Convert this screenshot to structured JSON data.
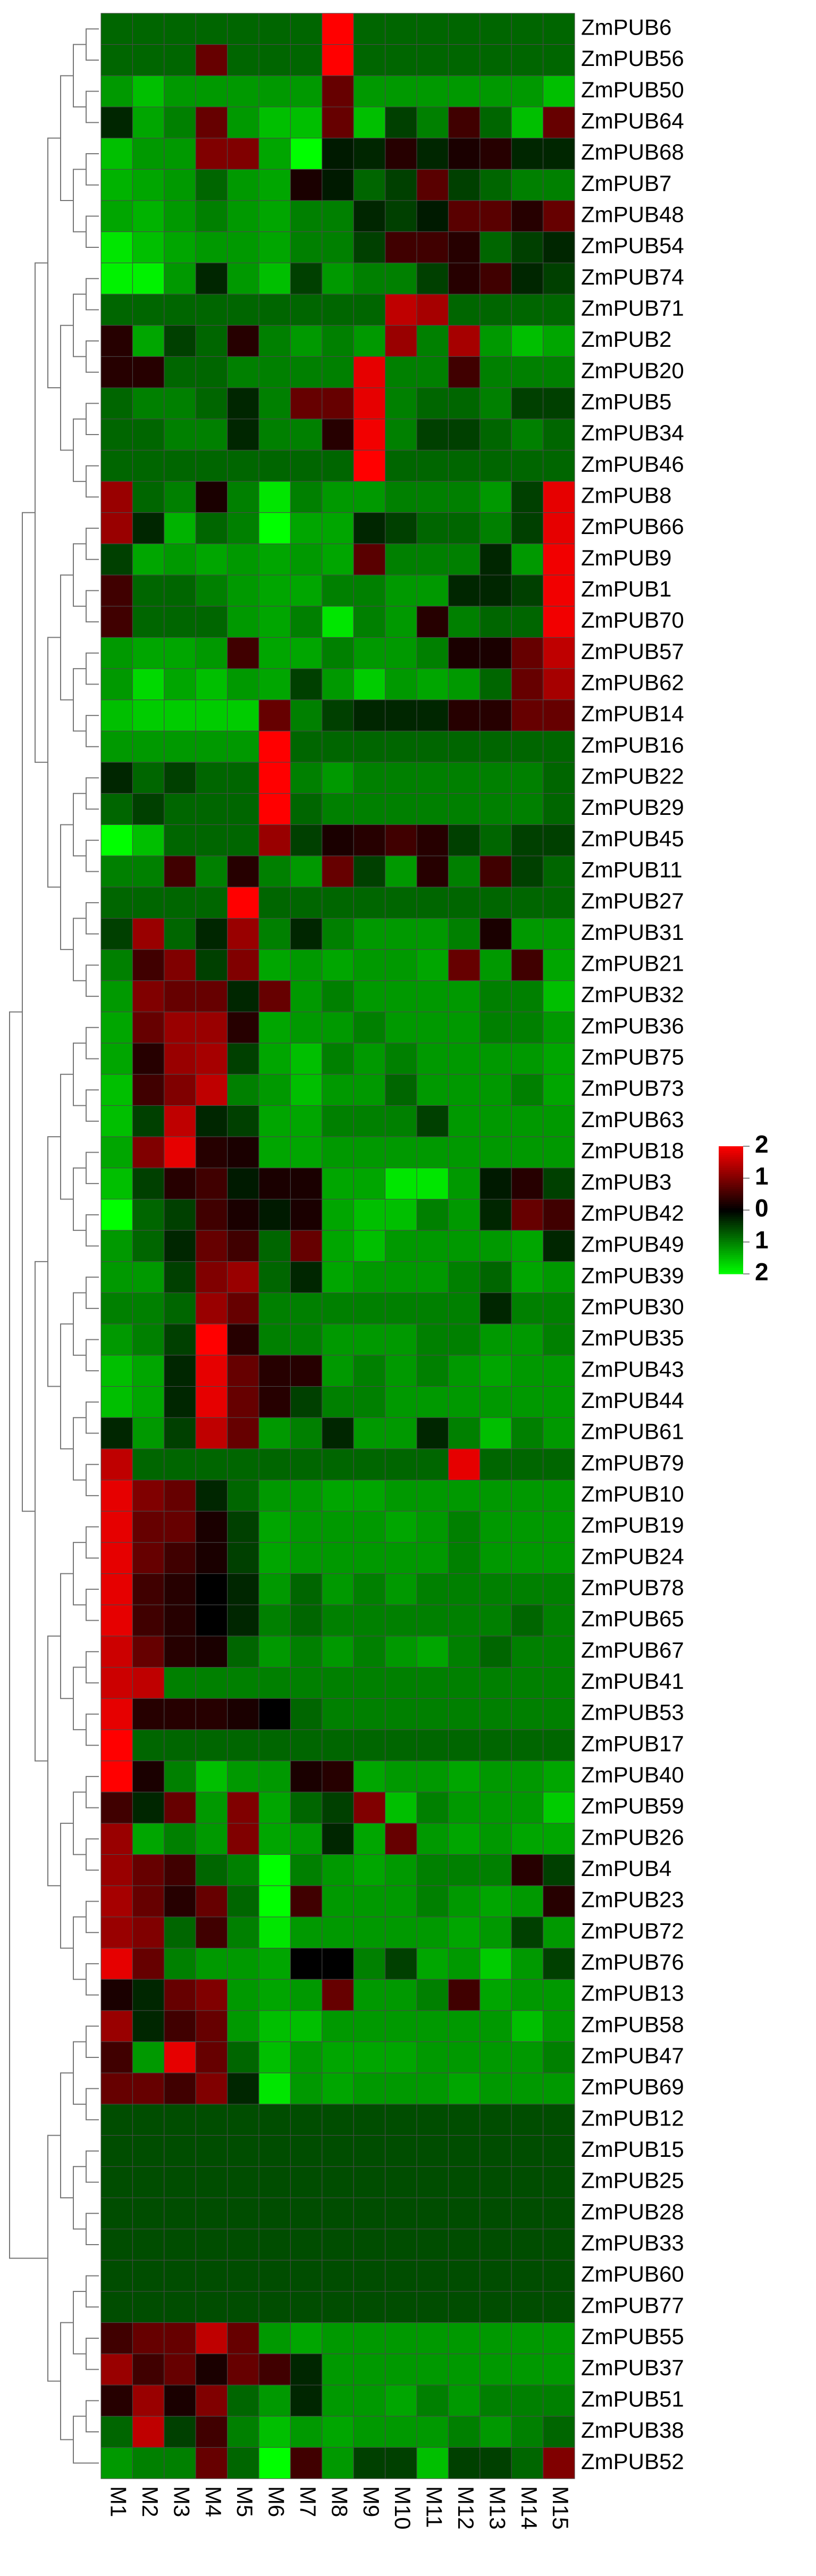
{
  "chart_data": {
    "type": "heatmap",
    "rows": [
      "ZmPUB6",
      "ZmPUB56",
      "ZmPUB50",
      "ZmPUB64",
      "ZmPUB68",
      "ZmPUB7",
      "ZmPUB48",
      "ZmPUB54",
      "ZmPUB74",
      "ZmPUB71",
      "ZmPUB2",
      "ZmPUB20",
      "ZmPUB5",
      "ZmPUB34",
      "ZmPUB46",
      "ZmPUB8",
      "ZmPUB66",
      "ZmPUB9",
      "ZmPUB1",
      "ZmPUB70",
      "ZmPUB57",
      "ZmPUB62",
      "ZmPUB14",
      "ZmPUB16",
      "ZmPUB22",
      "ZmPUB29",
      "ZmPUB45",
      "ZmPUB11",
      "ZmPUB27",
      "ZmPUB31",
      "ZmPUB21",
      "ZmPUB32",
      "ZmPUB36",
      "ZmPUB75",
      "ZmPUB73",
      "ZmPUB63",
      "ZmPUB18",
      "ZmPUB3",
      "ZmPUB42",
      "ZmPUB49",
      "ZmPUB39",
      "ZmPUB30",
      "ZmPUB35",
      "ZmPUB43",
      "ZmPUB44",
      "ZmPUB61",
      "ZmPUB79",
      "ZmPUB10",
      "ZmPUB19",
      "ZmPUB24",
      "ZmPUB78",
      "ZmPUB65",
      "ZmPUB67",
      "ZmPUB41",
      "ZmPUB53",
      "ZmPUB17",
      "ZmPUB40",
      "ZmPUB59",
      "ZmPUB26",
      "ZmPUB4",
      "ZmPUB23",
      "ZmPUB72",
      "ZmPUB76",
      "ZmPUB13",
      "ZmPUB58",
      "ZmPUB47",
      "ZmPUB69",
      "ZmPUB12",
      "ZmPUB15",
      "ZmPUB25",
      "ZmPUB28",
      "ZmPUB33",
      "ZmPUB60",
      "ZmPUB77",
      "ZmPUB55",
      "ZmPUB37",
      "ZmPUB51",
      "ZmPUB38",
      "ZmPUB52"
    ],
    "columns": [
      "M1",
      "M2",
      "M3",
      "M4",
      "M5",
      "M6",
      "M7",
      "M8",
      "M9",
      "M10",
      "M11",
      "M12",
      "M13",
      "M14",
      "M15"
    ],
    "values": [
      [
        -0.8,
        -0.8,
        -0.8,
        -0.8,
        -0.8,
        -0.8,
        -0.8,
        2,
        -0.8,
        -0.8,
        -0.8,
        -0.8,
        -0.8,
        -0.8,
        -0.8
      ],
      [
        -0.8,
        -0.8,
        -0.8,
        0.8,
        -0.8,
        -0.8,
        -0.8,
        2,
        -0.8,
        -0.8,
        -0.8,
        -0.8,
        -0.8,
        -0.8,
        -0.8
      ],
      [
        -1.2,
        -1.5,
        -1.2,
        -1.2,
        -1.2,
        -1.2,
        -1.2,
        0.8,
        -1.2,
        -1.2,
        -1.2,
        -1.2,
        -1.2,
        -1.2,
        -1.5
      ],
      [
        -0.3,
        -1.3,
        -1,
        0.8,
        -1.2,
        -1.5,
        -1.5,
        0.8,
        -1.5,
        -0.5,
        -1,
        0.5,
        -0.8,
        -1.5,
        0.8
      ],
      [
        -1.5,
        -1.2,
        -1.2,
        1,
        1,
        -1.3,
        -2,
        -0.2,
        -0.3,
        0.3,
        -0.3,
        0.2,
        0.3,
        -0.3,
        -0.3
      ],
      [
        -1.4,
        -1.3,
        -1.2,
        -0.8,
        -1.2,
        -1.3,
        0.2,
        -0.2,
        -0.8,
        -0.5,
        0.7,
        -0.5,
        -0.8,
        -1,
        -1
      ],
      [
        -1.3,
        -1.4,
        -1.2,
        -1,
        -1.2,
        -1.3,
        -1,
        -1,
        -0.3,
        -0.5,
        -0.2,
        0.7,
        0.7,
        0.3,
        0.8
      ],
      [
        -1.8,
        -1.5,
        -1.3,
        -1.2,
        -1.2,
        -1.3,
        -1,
        -1,
        -0.5,
        0.5,
        0.5,
        0.3,
        -0.8,
        -0.5,
        -0.3
      ],
      [
        -1.9,
        -1.9,
        -1.2,
        -0.3,
        -1.2,
        -1.5,
        -0.5,
        -1.2,
        -1,
        -1,
        -0.5,
        0.3,
        0.5,
        -0.3,
        -0.5
      ],
      [
        -0.8,
        -0.8,
        -0.8,
        -0.8,
        -0.8,
        -0.8,
        -0.8,
        -0.8,
        -0.8,
        1.5,
        1.3,
        -0.8,
        -0.8,
        -0.8,
        -0.8
      ],
      [
        0.3,
        -1.3,
        -0.5,
        -0.8,
        0.3,
        -1,
        -1.2,
        -1,
        -1.2,
        1.2,
        -1,
        1.3,
        -1.2,
        -1.5,
        -1.3
      ],
      [
        0.3,
        0.3,
        -0.8,
        -0.8,
        -1,
        -1,
        -1,
        -1,
        1.8,
        -1,
        -1,
        0.5,
        -1,
        -1,
        -1
      ],
      [
        -0.8,
        -1,
        -1,
        -0.8,
        -0.3,
        -1,
        0.8,
        0.8,
        1.8,
        -1,
        -0.8,
        -0.8,
        -1,
        -0.5,
        -0.5
      ],
      [
        -0.8,
        -0.8,
        -1,
        -1,
        -0.3,
        -1,
        -1,
        0.3,
        1.9,
        -1,
        -0.5,
        -0.5,
        -0.8,
        -1,
        -0.8
      ],
      [
        -0.8,
        -0.8,
        -0.8,
        -0.8,
        -0.8,
        -0.8,
        -0.8,
        -0.8,
        2,
        -0.8,
        -0.8,
        -0.8,
        -0.8,
        -0.8,
        -0.8
      ],
      [
        1.2,
        -0.8,
        -1,
        0.2,
        -1,
        -1.8,
        -1,
        -1.2,
        -1.2,
        -1,
        -1,
        -1,
        -1.2,
        -0.5,
        1.8
      ],
      [
        1.2,
        -0.3,
        -1.4,
        -0.8,
        -1,
        -2,
        -1.3,
        -1.3,
        -0.3,
        -0.5,
        -0.8,
        -0.8,
        -1,
        -0.5,
        1.8
      ],
      [
        -0.5,
        -1.3,
        -1.2,
        -1.3,
        -1.2,
        -1.3,
        -1.2,
        -1.3,
        0.7,
        -1,
        -1,
        -1,
        -0.3,
        -1.2,
        1.9
      ],
      [
        0.5,
        -0.8,
        -0.8,
        -1,
        -1.2,
        -1.3,
        -1.3,
        -1,
        -1,
        -1.2,
        -1.2,
        -0.3,
        -0.3,
        -0.5,
        1.9
      ],
      [
        0.5,
        -0.8,
        -0.8,
        -0.8,
        -1.2,
        -1.3,
        -1,
        -1.8,
        -1,
        -1.2,
        0.3,
        -1,
        -0.8,
        -0.8,
        1.9
      ],
      [
        -1.2,
        -1.3,
        -1.3,
        -1.2,
        0.5,
        -1.3,
        -1.3,
        -1,
        -1.2,
        -1.2,
        -1,
        0.2,
        0.2,
        0.8,
        1.5
      ],
      [
        -1.2,
        -1.7,
        -1.3,
        -1.5,
        -1.2,
        -1.3,
        -0.5,
        -1.2,
        -1.6,
        -1.2,
        -1.3,
        -1.2,
        -0.8,
        0.8,
        1.3
      ],
      [
        -1.5,
        -1.6,
        -1.6,
        -1.6,
        -1.6,
        0.8,
        -1,
        -0.5,
        -0.3,
        -0.3,
        -0.3,
        0.3,
        0.3,
        0.8,
        0.8
      ],
      [
        -1.2,
        -1.2,
        -1.2,
        -1.2,
        -1.2,
        2,
        -0.8,
        -0.8,
        -0.8,
        -0.8,
        -0.8,
        -0.8,
        -0.8,
        -0.8,
        -0.8
      ],
      [
        -0.3,
        -0.8,
        -0.5,
        -0.8,
        -0.8,
        2,
        -1,
        -1.2,
        -1,
        -1,
        -1,
        -1,
        -1,
        -1,
        -0.8
      ],
      [
        -0.8,
        -0.5,
        -0.8,
        -0.8,
        -0.8,
        2,
        -0.8,
        -1,
        -1,
        -1,
        -1,
        -1,
        -1,
        -1,
        -0.8
      ],
      [
        -2,
        -1.5,
        -0.8,
        -0.8,
        -0.8,
        1.2,
        -0.5,
        0.2,
        0.3,
        0.5,
        0.3,
        -0.5,
        -0.8,
        -0.5,
        -0.5
      ],
      [
        -1,
        -1,
        0.5,
        -1,
        0.3,
        -1,
        -1.2,
        0.8,
        -0.5,
        -1.2,
        0.3,
        -1,
        0.5,
        -0.5,
        -0.8
      ],
      [
        -0.8,
        -0.8,
        -0.8,
        -0.8,
        2,
        -0.8,
        -0.8,
        -0.8,
        -0.8,
        -0.8,
        -0.8,
        -0.8,
        -0.8,
        -0.8,
        -0.8
      ],
      [
        -0.5,
        1.2,
        -0.8,
        -0.3,
        1.2,
        -1,
        -0.3,
        -1,
        -1.2,
        -1.2,
        -1.2,
        -1,
        0.2,
        -1.2,
        -1.2
      ],
      [
        -1,
        0.5,
        1,
        -0.5,
        1,
        -1.3,
        -1.2,
        -1.3,
        -1.2,
        -1.2,
        -1.3,
        0.8,
        -1.2,
        0.5,
        -1.3
      ],
      [
        -1.2,
        1,
        0.8,
        0.8,
        -0.3,
        0.8,
        -1.2,
        -1,
        -1.2,
        -1.2,
        -1.2,
        -1.2,
        -1,
        -1,
        -1.5
      ],
      [
        -1.3,
        0.8,
        1.2,
        1.2,
        0.3,
        -1.3,
        -1.2,
        -1.2,
        -1,
        -1.2,
        -1.2,
        -1.2,
        -1,
        -1,
        -1.2
      ],
      [
        -1.3,
        0.3,
        1.2,
        1.3,
        -0.5,
        -1.3,
        -1.5,
        -1,
        -1.2,
        -1,
        -1.2,
        -1.2,
        -1.2,
        -1.2,
        -1.3
      ],
      [
        -1.5,
        0.5,
        1,
        1.5,
        -1,
        -1.2,
        -1.5,
        -1.2,
        -1.2,
        -0.8,
        -1.2,
        -1.2,
        -1.2,
        -1,
        -1.3
      ],
      [
        -1.5,
        -0.5,
        1.5,
        -0.3,
        -0.5,
        -1.3,
        -1.3,
        -1,
        -1,
        -1,
        -0.5,
        -1.2,
        -1.2,
        -1.2,
        -1.2
      ],
      [
        -1.3,
        1,
        1.8,
        0.3,
        0.2,
        -1.3,
        -1.3,
        -1.2,
        -1.2,
        -1.2,
        -1.2,
        -1.2,
        -1.2,
        -1.2,
        -1.2
      ],
      [
        -1.5,
        -0.5,
        0.3,
        0.5,
        -0.2,
        0.2,
        0.2,
        -1.3,
        -1.3,
        -1.8,
        -1.8,
        -1.2,
        -0.2,
        0.3,
        -0.5
      ],
      [
        -2,
        -0.8,
        -0.5,
        0.5,
        0.2,
        -0.2,
        0.2,
        -1.3,
        -1.5,
        -1.5,
        -1,
        -1.2,
        -0.3,
        0.8,
        0.5
      ],
      [
        -1.2,
        -0.8,
        -0.3,
        0.8,
        0.5,
        -0.8,
        0.8,
        -1.3,
        -1.5,
        -1.2,
        -1.2,
        -1.2,
        -1.2,
        -1.3,
        -0.3
      ],
      [
        -1.2,
        -1.2,
        -0.5,
        1,
        1.2,
        -0.8,
        -0.3,
        -1.3,
        -1.2,
        -1.2,
        -1.2,
        -1,
        -0.8,
        -1.3,
        -1.2
      ],
      [
        -1,
        -1,
        -0.8,
        1.2,
        0.8,
        -1,
        -1,
        -1,
        -1,
        -1,
        -1,
        -1,
        -0.3,
        -1,
        -1
      ],
      [
        -1.2,
        -1,
        -0.5,
        2,
        0.3,
        -1,
        -1,
        -1.2,
        -1.2,
        -1.2,
        -1,
        -1,
        -1.2,
        -1.2,
        -1
      ],
      [
        -1.5,
        -1.3,
        -0.3,
        1.8,
        0.8,
        0.3,
        0.3,
        -1.2,
        -1,
        -1.2,
        -1,
        -1.2,
        -1.3,
        -1.2,
        -1.2
      ],
      [
        -1.5,
        -1.3,
        -0.3,
        1.8,
        0.8,
        0.3,
        -0.5,
        -1,
        -1,
        -1.2,
        -1.2,
        -1.2,
        -1.2,
        -1.2,
        -1.2
      ],
      [
        -0.3,
        -1.2,
        -0.5,
        1.5,
        0.8,
        -1.2,
        -1,
        -0.3,
        -1.2,
        -1.2,
        -0.3,
        -1,
        -1.5,
        -1,
        -1.2
      ],
      [
        1.5,
        -0.8,
        -0.8,
        -0.8,
        -0.8,
        -0.8,
        -0.8,
        -0.8,
        -0.8,
        -0.8,
        -0.8,
        1.8,
        -0.8,
        -0.8,
        -0.8
      ],
      [
        1.8,
        1,
        0.8,
        -0.3,
        -0.8,
        -1.2,
        -1.2,
        -1.3,
        -1.3,
        -1.2,
        -1.2,
        -1.2,
        -1.2,
        -1.2,
        -1.2
      ],
      [
        1.8,
        0.8,
        0.8,
        0.2,
        -0.5,
        -1.3,
        -1.2,
        -1.2,
        -1.2,
        -1.3,
        -1.2,
        -1,
        -1.2,
        -1.2,
        -1.2
      ],
      [
        1.8,
        0.8,
        0.5,
        0.2,
        -0.5,
        -1.3,
        -1.2,
        -1.2,
        -1.2,
        -1.2,
        -1.2,
        -1,
        -1.2,
        -1.2,
        -1.2
      ],
      [
        1.8,
        0.5,
        0.3,
        0,
        -0.3,
        -1.2,
        -0.8,
        -1.2,
        -1,
        -1.2,
        -1,
        -1,
        -1,
        -1,
        -1
      ],
      [
        1.8,
        0.5,
        0.3,
        0,
        -0.3,
        -1,
        -0.8,
        -1,
        -1,
        -1,
        -1,
        -1,
        -1,
        -0.8,
        -1
      ],
      [
        1.6,
        0.8,
        0.3,
        0.2,
        -0.8,
        -1.2,
        -1,
        -1.2,
        -1,
        -1.2,
        -1.3,
        -1,
        -0.8,
        -1,
        -1
      ],
      [
        1.6,
        1.5,
        -1,
        -1,
        -1,
        -1,
        -1,
        -1,
        -1,
        -1,
        -1,
        -1,
        -1,
        -1,
        -1
      ],
      [
        1.8,
        0.3,
        0.3,
        0.3,
        0.2,
        0,
        -0.8,
        -1,
        -1,
        -1,
        -1,
        -1,
        -1,
        -1,
        -1
      ],
      [
        2,
        -0.8,
        -0.8,
        -0.8,
        -0.8,
        -0.8,
        -0.8,
        -0.8,
        -0.8,
        -0.8,
        -0.8,
        -0.8,
        -0.8,
        -0.8,
        -0.8
      ],
      [
        2,
        0.2,
        -1,
        -1.5,
        -1.2,
        -1.2,
        0.2,
        0.3,
        -1.3,
        -1.2,
        -1.2,
        -1.3,
        -1.2,
        -1.2,
        -1.3
      ],
      [
        0.5,
        -0.3,
        0.8,
        -1.2,
        1,
        -1.3,
        -0.8,
        -0.5,
        1,
        -1.5,
        -1,
        -1.2,
        -1.2,
        -1.2,
        -1.6
      ],
      [
        1.2,
        -1.3,
        -1,
        -1.2,
        1,
        -1.3,
        -1.2,
        -0.3,
        -1.3,
        0.8,
        -1.2,
        -1.3,
        -1.2,
        -1.3,
        -1.3
      ],
      [
        1.2,
        0.8,
        0.5,
        -0.8,
        -1,
        -2,
        -1,
        -1.2,
        -1.3,
        -1.2,
        -1,
        -1,
        -1,
        0.3,
        -0.5
      ],
      [
        1.3,
        0.8,
        0.3,
        0.8,
        -0.8,
        -2,
        0.5,
        -1.2,
        -1.2,
        -1.2,
        -1,
        -1.2,
        -1.3,
        -1.2,
        0.3
      ],
      [
        1.2,
        1,
        -0.8,
        0.5,
        -1,
        -1.8,
        -1.2,
        -1.2,
        -1.2,
        -1.2,
        -1.2,
        -1.3,
        -1.2,
        -0.5,
        -1.2
      ],
      [
        1.8,
        0.8,
        -1,
        -1.2,
        -1.2,
        -1.3,
        0,
        0,
        -1,
        -0.5,
        -1.3,
        -1.2,
        -1.6,
        -1.2,
        -0.5
      ],
      [
        0.2,
        -0.3,
        0.8,
        1,
        -1.2,
        -1.3,
        -1.2,
        0.8,
        -1.2,
        -1.2,
        -1,
        0.5,
        -1.3,
        -1.2,
        -1.2
      ],
      [
        1.2,
        -0.3,
        0.5,
        0.8,
        -1.2,
        -1.5,
        -1.5,
        -1.2,
        -1.2,
        -1.2,
        -1.2,
        -1.2,
        -1.2,
        -1.5,
        -1.2
      ],
      [
        0.5,
        -1.2,
        1.8,
        0.8,
        -0.8,
        -1.5,
        -1.2,
        -1.3,
        -1.3,
        -1.3,
        -1.2,
        -1.2,
        -1.2,
        -1.2,
        -1
      ],
      [
        0.8,
        0.8,
        0.5,
        1,
        -0.3,
        -1.8,
        -1.2,
        -1.3,
        -1.2,
        -1.2,
        -1.2,
        -1.3,
        -1.2,
        -1.2,
        -1.2
      ],
      [
        -0.6,
        -0.6,
        -0.6,
        -0.6,
        -0.6,
        -0.6,
        -0.6,
        -0.6,
        -0.6,
        -0.6,
        -0.6,
        -0.6,
        -0.6,
        -0.6,
        -0.6
      ],
      [
        -0.6,
        -0.6,
        -0.6,
        -0.6,
        -0.6,
        -0.6,
        -0.6,
        -0.6,
        -0.6,
        -0.6,
        -0.6,
        -0.6,
        -0.6,
        -0.6,
        -0.6
      ],
      [
        -0.6,
        -0.6,
        -0.6,
        -0.6,
        -0.6,
        -0.6,
        -0.6,
        -0.6,
        -0.6,
        -0.6,
        -0.6,
        -0.6,
        -0.6,
        -0.6,
        -0.6
      ],
      [
        -0.6,
        -0.6,
        -0.6,
        -0.6,
        -0.6,
        -0.6,
        -0.6,
        -0.6,
        -0.6,
        -0.6,
        -0.6,
        -0.6,
        -0.6,
        -0.6,
        -0.6
      ],
      [
        -0.6,
        -0.6,
        -0.6,
        -0.6,
        -0.6,
        -0.6,
        -0.6,
        -0.6,
        -0.6,
        -0.6,
        -0.6,
        -0.6,
        -0.6,
        -0.6,
        -0.6
      ],
      [
        -0.6,
        -0.6,
        -0.6,
        -0.6,
        -0.6,
        -0.6,
        -0.6,
        -0.6,
        -0.6,
        -0.6,
        -0.6,
        -0.6,
        -0.6,
        -0.6,
        -0.6
      ],
      [
        -0.6,
        -0.6,
        -0.6,
        -0.6,
        -0.6,
        -0.6,
        -0.6,
        -0.6,
        -0.6,
        -0.6,
        -0.6,
        -0.6,
        -0.6,
        -0.6,
        -0.6
      ],
      [
        0.5,
        0.8,
        0.8,
        1.5,
        0.8,
        -1.2,
        -1.3,
        -1.2,
        -1.2,
        -1.2,
        -1.2,
        -1.2,
        -1.2,
        -1.2,
        -1.2
      ],
      [
        1.2,
        0.5,
        0.8,
        0.2,
        0.8,
        0.5,
        -0.3,
        -1.2,
        -1.2,
        -1.2,
        -1.2,
        -1.2,
        -1.2,
        -1.2,
        -1.2
      ],
      [
        0.3,
        1.2,
        0.2,
        1,
        -0.8,
        -1.2,
        -0.3,
        -1.2,
        -1.2,
        -1.3,
        -1,
        -1.2,
        -1,
        -1,
        -1
      ],
      [
        -0.8,
        1.5,
        -0.5,
        0.5,
        -1,
        -1.5,
        -1.2,
        -1.3,
        -1.2,
        -1.2,
        -1.2,
        -1,
        -1.2,
        -1,
        -0.8
      ],
      [
        -1.2,
        -1,
        -1,
        0.8,
        -0.8,
        -2,
        0.5,
        -1.2,
        -0.5,
        -0.5,
        -1.5,
        -0.5,
        -0.5,
        -0.8,
        1
      ]
    ],
    "zlim": [
      -2,
      2
    ],
    "colors": [
      "#00ff00",
      "#000000",
      "#ff0000"
    ],
    "colorbar_ticks": [
      2,
      1,
      0,
      {
        "value": -1,
        "label": "1"
      },
      {
        "value": -2,
        "label": "2"
      }
    ]
  }
}
